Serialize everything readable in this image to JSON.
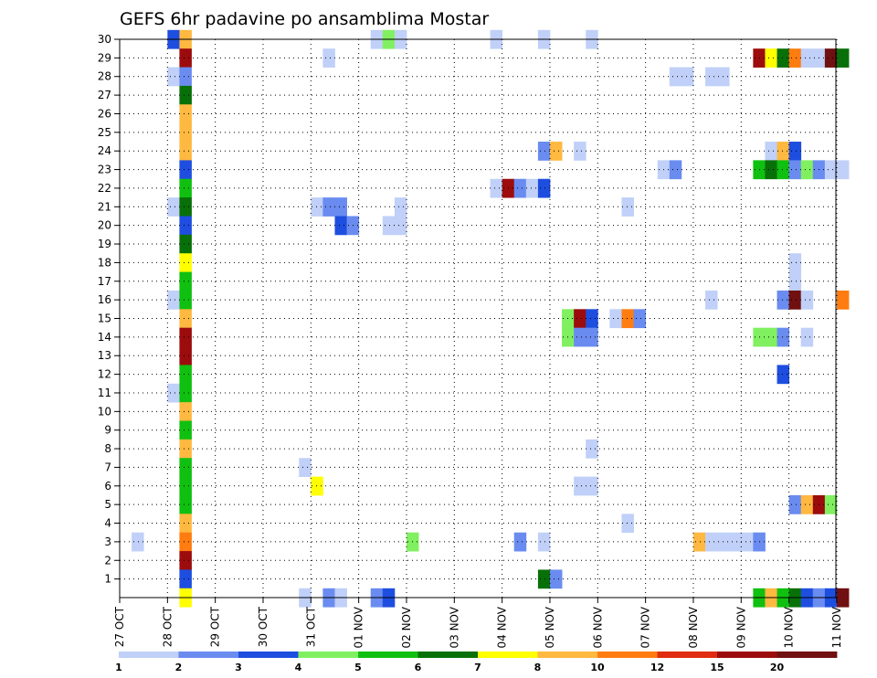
{
  "chart_data": {
    "type": "heatmap",
    "title": "GEFS 6hr padavine po ansamblima Mostar",
    "x_tick_labels": [
      "27 OCT",
      "28 OCT",
      "29 OCT",
      "30 OCT",
      "31 OCT",
      "01 NOV",
      "02 NOV",
      "03 NOV",
      "04 NOV",
      "05 NOV",
      "06 NOV",
      "07 NOV",
      "08 NOV",
      "09 NOV",
      "10 NOV",
      "11 NOV"
    ],
    "x_steps_per_day": 4,
    "y_tick_labels": [
      "1",
      "2",
      "3",
      "4",
      "5",
      "6",
      "7",
      "8",
      "9",
      "10",
      "11",
      "12",
      "13",
      "14",
      "15",
      "16",
      "17",
      "18",
      "19",
      "20",
      "21",
      "22",
      "23",
      "24",
      "25",
      "26",
      "27",
      "28",
      "29",
      "30"
    ],
    "y_min": 0,
    "y_max": 30,
    "grid": "dotted",
    "colorbar": {
      "placement": "bottom",
      "colors": [
        "#c0d0f8",
        "#6a8cf0",
        "#1e4ee0",
        "#80f060",
        "#10c010",
        "#087008",
        "#ffff00",
        "#ffb840",
        "#ff7c10",
        "#e02c10",
        "#9c0c0c",
        "#701010"
      ],
      "labels": [
        "1",
        "2",
        "3",
        "4",
        "5",
        "6",
        "7",
        "8",
        "10",
        "12",
        "15",
        "20"
      ]
    },
    "cells": [
      {
        "x": 1.0,
        "y": 30,
        "v": 3
      },
      {
        "x": 1.25,
        "y": 30,
        "v": 8
      },
      {
        "x": 1.25,
        "y": 29,
        "v": 15
      },
      {
        "x": 1.0,
        "y": 28,
        "v": 1
      },
      {
        "x": 1.25,
        "y": 28,
        "v": 2
      },
      {
        "x": 1.25,
        "y": 27,
        "v": 6
      },
      {
        "x": 1.25,
        "y": 26,
        "v": 8
      },
      {
        "x": 1.25,
        "y": 25,
        "v": 8
      },
      {
        "x": 1.25,
        "y": 24,
        "v": 8
      },
      {
        "x": 1.25,
        "y": 23,
        "v": 3
      },
      {
        "x": 1.25,
        "y": 22,
        "v": 5
      },
      {
        "x": 1.0,
        "y": 21,
        "v": 1
      },
      {
        "x": 1.25,
        "y": 21,
        "v": 6
      },
      {
        "x": 1.25,
        "y": 20,
        "v": 3
      },
      {
        "x": 1.25,
        "y": 19,
        "v": 6
      },
      {
        "x": 1.25,
        "y": 18,
        "v": 7
      },
      {
        "x": 1.25,
        "y": 17,
        "v": 5
      },
      {
        "x": 1.0,
        "y": 16,
        "v": 1
      },
      {
        "x": 1.25,
        "y": 16,
        "v": 5
      },
      {
        "x": 1.25,
        "y": 15,
        "v": 8
      },
      {
        "x": 1.25,
        "y": 14,
        "v": 15
      },
      {
        "x": 1.25,
        "y": 13,
        "v": 15
      },
      {
        "x": 1.25,
        "y": 12,
        "v": 5
      },
      {
        "x": 1.0,
        "y": 11,
        "v": 1
      },
      {
        "x": 1.25,
        "y": 11,
        "v": 5
      },
      {
        "x": 1.25,
        "y": 10,
        "v": 8
      },
      {
        "x": 1.25,
        "y": 9,
        "v": 5
      },
      {
        "x": 1.25,
        "y": 8,
        "v": 8
      },
      {
        "x": 1.25,
        "y": 7,
        "v": 5
      },
      {
        "x": 1.25,
        "y": 6,
        "v": 5
      },
      {
        "x": 1.25,
        "y": 5,
        "v": 5
      },
      {
        "x": 1.25,
        "y": 4,
        "v": 8
      },
      {
        "x": 1.25,
        "y": 3,
        "v": 10
      },
      {
        "x": 1.25,
        "y": 2,
        "v": 15
      },
      {
        "x": 1.25,
        "y": 1,
        "v": 3
      },
      {
        "x": 1.25,
        "y": 0,
        "v": 7
      },
      {
        "x": 0.25,
        "y": 3,
        "v": 1
      },
      {
        "x": 5.25,
        "y": 30,
        "v": 1
      },
      {
        "x": 5.5,
        "y": 30,
        "v": 4
      },
      {
        "x": 5.75,
        "y": 30,
        "v": 1
      },
      {
        "x": 7.75,
        "y": 30,
        "v": 1
      },
      {
        "x": 8.75,
        "y": 30,
        "v": 1
      },
      {
        "x": 9.75,
        "y": 30,
        "v": 1
      },
      {
        "x": 4.25,
        "y": 29,
        "v": 1
      },
      {
        "x": 13.25,
        "y": 29,
        "v": 15
      },
      {
        "x": 13.5,
        "y": 29,
        "v": 7
      },
      {
        "x": 13.75,
        "y": 29,
        "v": 6
      },
      {
        "x": 14.0,
        "y": 29,
        "v": 10
      },
      {
        "x": 14.25,
        "y": 29,
        "v": 1
      },
      {
        "x": 14.5,
        "y": 29,
        "v": 1
      },
      {
        "x": 14.75,
        "y": 29,
        "v": 20
      },
      {
        "x": 15.0,
        "y": 29,
        "v": 6
      },
      {
        "x": 11.5,
        "y": 28,
        "v": 1
      },
      {
        "x": 11.75,
        "y": 28,
        "v": 1
      },
      {
        "x": 12.25,
        "y": 28,
        "v": 1
      },
      {
        "x": 12.5,
        "y": 28,
        "v": 1
      },
      {
        "x": 8.75,
        "y": 24,
        "v": 2
      },
      {
        "x": 9.0,
        "y": 24,
        "v": 8
      },
      {
        "x": 9.5,
        "y": 24,
        "v": 1
      },
      {
        "x": 13.5,
        "y": 24,
        "v": 1
      },
      {
        "x": 13.75,
        "y": 24,
        "v": 8
      },
      {
        "x": 14.0,
        "y": 24,
        "v": 3
      },
      {
        "x": 11.25,
        "y": 23,
        "v": 1
      },
      {
        "x": 11.5,
        "y": 23,
        "v": 2
      },
      {
        "x": 13.25,
        "y": 23,
        "v": 5
      },
      {
        "x": 13.5,
        "y": 23,
        "v": 6
      },
      {
        "x": 13.75,
        "y": 23,
        "v": 5
      },
      {
        "x": 14.0,
        "y": 23,
        "v": 2
      },
      {
        "x": 14.25,
        "y": 23,
        "v": 4
      },
      {
        "x": 14.5,
        "y": 23,
        "v": 2
      },
      {
        "x": 14.75,
        "y": 23,
        "v": 1
      },
      {
        "x": 15.0,
        "y": 23,
        "v": 1
      },
      {
        "x": 7.75,
        "y": 22,
        "v": 1
      },
      {
        "x": 8.0,
        "y": 22,
        "v": 15
      },
      {
        "x": 8.25,
        "y": 22,
        "v": 2
      },
      {
        "x": 8.5,
        "y": 22,
        "v": 1
      },
      {
        "x": 8.75,
        "y": 22,
        "v": 3
      },
      {
        "x": 4.0,
        "y": 21,
        "v": 1
      },
      {
        "x": 4.25,
        "y": 21,
        "v": 2
      },
      {
        "x": 4.5,
        "y": 21,
        "v": 2
      },
      {
        "x": 5.75,
        "y": 21,
        "v": 1
      },
      {
        "x": 10.5,
        "y": 21,
        "v": 1
      },
      {
        "x": 4.5,
        "y": 20,
        "v": 3
      },
      {
        "x": 4.75,
        "y": 20,
        "v": 2
      },
      {
        "x": 5.5,
        "y": 20,
        "v": 1
      },
      {
        "x": 5.75,
        "y": 20,
        "v": 1
      },
      {
        "x": 14.0,
        "y": 18,
        "v": 1
      },
      {
        "x": 14.0,
        "y": 17,
        "v": 1
      },
      {
        "x": 12.25,
        "y": 16,
        "v": 1
      },
      {
        "x": 13.75,
        "y": 16,
        "v": 2
      },
      {
        "x": 14.0,
        "y": 16,
        "v": 20
      },
      {
        "x": 14.25,
        "y": 16,
        "v": 1
      },
      {
        "x": 15.0,
        "y": 16,
        "v": 10
      },
      {
        "x": 9.25,
        "y": 15,
        "v": 4
      },
      {
        "x": 9.5,
        "y": 15,
        "v": 15
      },
      {
        "x": 9.75,
        "y": 15,
        "v": 3
      },
      {
        "x": 10.25,
        "y": 15,
        "v": 1
      },
      {
        "x": 10.5,
        "y": 15,
        "v": 10
      },
      {
        "x": 10.75,
        "y": 15,
        "v": 2
      },
      {
        "x": 9.25,
        "y": 14,
        "v": 4
      },
      {
        "x": 9.5,
        "y": 14,
        "v": 2
      },
      {
        "x": 9.75,
        "y": 14,
        "v": 2
      },
      {
        "x": 13.25,
        "y": 14,
        "v": 4
      },
      {
        "x": 13.5,
        "y": 14,
        "v": 4
      },
      {
        "x": 13.75,
        "y": 14,
        "v": 2
      },
      {
        "x": 14.25,
        "y": 14,
        "v": 1
      },
      {
        "x": 13.75,
        "y": 12,
        "v": 3
      },
      {
        "x": 9.75,
        "y": 8,
        "v": 1
      },
      {
        "x": 3.75,
        "y": 7,
        "v": 1
      },
      {
        "x": 4.0,
        "y": 6,
        "v": 7
      },
      {
        "x": 9.5,
        "y": 6,
        "v": 1
      },
      {
        "x": 9.75,
        "y": 6,
        "v": 1
      },
      {
        "x": 14.0,
        "y": 5,
        "v": 2
      },
      {
        "x": 14.25,
        "y": 5,
        "v": 8
      },
      {
        "x": 14.5,
        "y": 5,
        "v": 15
      },
      {
        "x": 14.75,
        "y": 5,
        "v": 4
      },
      {
        "x": 10.5,
        "y": 4,
        "v": 1
      },
      {
        "x": 6.0,
        "y": 3,
        "v": 4
      },
      {
        "x": 8.25,
        "y": 3,
        "v": 2
      },
      {
        "x": 8.75,
        "y": 3,
        "v": 1
      },
      {
        "x": 12.0,
        "y": 3,
        "v": 8
      },
      {
        "x": 12.25,
        "y": 3,
        "v": 1
      },
      {
        "x": 12.5,
        "y": 3,
        "v": 1
      },
      {
        "x": 12.75,
        "y": 3,
        "v": 1
      },
      {
        "x": 13.0,
        "y": 3,
        "v": 1
      },
      {
        "x": 13.25,
        "y": 3,
        "v": 2
      },
      {
        "x": 8.75,
        "y": 1,
        "v": 6
      },
      {
        "x": 9.0,
        "y": 1,
        "v": 2
      },
      {
        "x": 3.75,
        "y": 0,
        "v": 1
      },
      {
        "x": 4.25,
        "y": 0,
        "v": 2
      },
      {
        "x": 4.5,
        "y": 0,
        "v": 1
      },
      {
        "x": 5.25,
        "y": 0,
        "v": 2
      },
      {
        "x": 5.5,
        "y": 0,
        "v": 3
      },
      {
        "x": 13.25,
        "y": 0,
        "v": 5
      },
      {
        "x": 13.5,
        "y": 0,
        "v": 8
      },
      {
        "x": 13.75,
        "y": 0,
        "v": 5
      },
      {
        "x": 14.0,
        "y": 0,
        "v": 6
      },
      {
        "x": 14.25,
        "y": 0,
        "v": 3
      },
      {
        "x": 14.5,
        "y": 0,
        "v": 2
      },
      {
        "x": 14.75,
        "y": 0,
        "v": 3
      },
      {
        "x": 15.0,
        "y": 0,
        "v": 20
      }
    ]
  }
}
